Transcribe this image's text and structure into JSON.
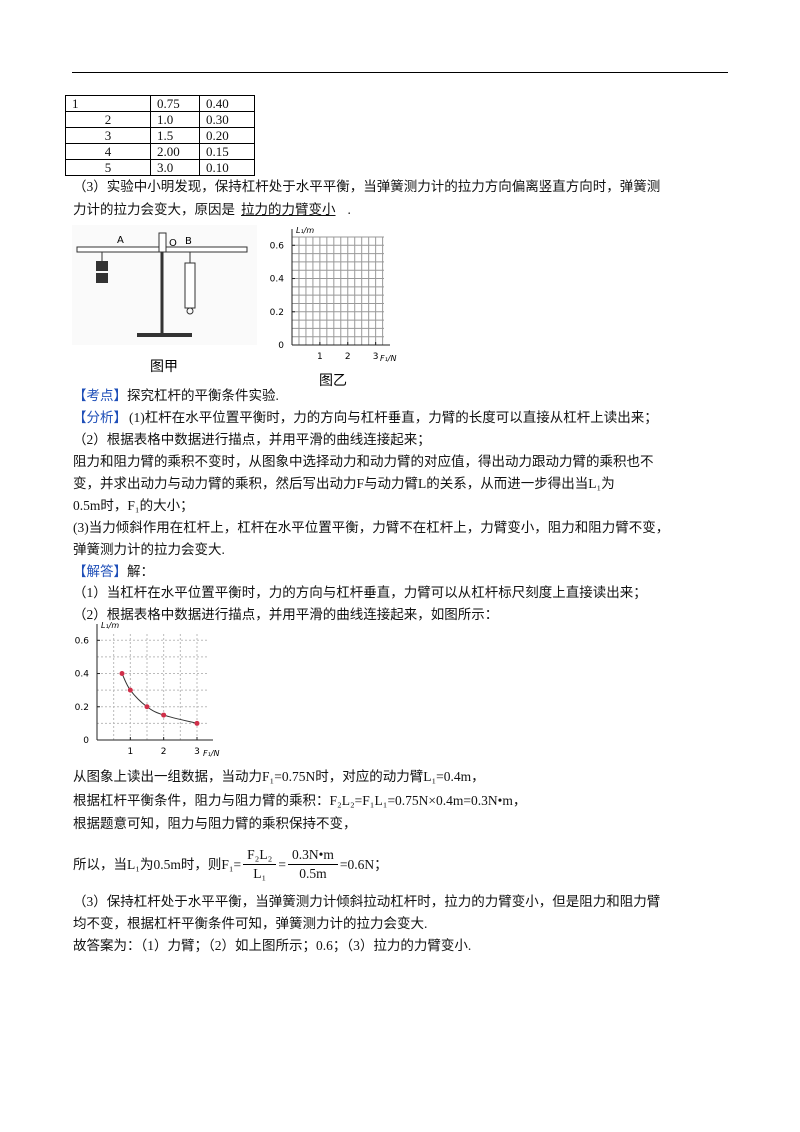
{
  "table": {
    "rows": [
      [
        "1",
        "0.75",
        "0.40"
      ],
      [
        "2",
        "1.0",
        "0.30"
      ],
      [
        "3",
        "1.5",
        "0.20"
      ],
      [
        "4",
        "2.00",
        "0.15"
      ],
      [
        "5",
        "3.0",
        "0.10"
      ]
    ]
  },
  "question3": {
    "line1": "（3）实验中小明发现，保持杠杆处于水平平衡，当弹簧测力计的拉力方向偏离竖直方向时，弹簧测",
    "line2": "力计的拉力会变大，原因是",
    "answer": "拉力的力臂变小",
    "end": "."
  },
  "figure_a": {
    "labels": [
      "A",
      "O",
      "B"
    ],
    "caption": "图甲"
  },
  "figure_b": {
    "caption": "图乙",
    "y_label": "L₁/m",
    "x_label": "F₁/N",
    "xlim": [
      0,
      3.3
    ],
    "ylim": [
      0,
      0.65
    ],
    "xticks": [
      1,
      2,
      3
    ],
    "yticks": [
      0,
      0.2,
      0.4,
      0.6
    ]
  },
  "kaodian": {
    "tag": "【考点】",
    "text": "探究杠杆的平衡条件实验."
  },
  "fenxi": {
    "tag": "【分析】",
    "lines": [
      "(1)杠杆在水平位置平衡时，力的方向与杠杆垂直，力臂的长度可以直接从杠杆上读出来；",
      "（2）根据表格中数据进行描点，并用平滑的曲线连接起来；",
      "阻力和阻力臂的乘积不变时，从图象中选择动力和动力臂的对应值，得出动力跟动力臂的乘积也不",
      "变，并求出动力与动力臂的乘积，然后写出动力F与动力臂L的关系，从而进一步得出当L₁为",
      "0.5m时，F₁的大小；",
      "(3)当力倾斜作用在杠杆上，杠杆在水平位置平衡，力臂不在杠杆上，力臂变小，阻力和阻力臂不变，",
      "弹簧测力计的拉力会变大."
    ]
  },
  "jieda": {
    "tag": "【解答】",
    "text": "解：",
    "lines": [
      "（1）当杠杆在水平位置平衡时，力的方向与杠杆垂直，力臂可以从杠杆标尺刻度上直接读出来；",
      "（2）根据表格中数据进行描点，并用平滑的曲线连接起来，如图所示："
    ]
  },
  "graph": {
    "y_label": "L₁/m",
    "x_label": "F₁/N",
    "xlim": [
      0,
      3.3
    ],
    "ylim": [
      0,
      0.65
    ],
    "xticks": [
      1,
      2,
      3
    ],
    "yticks": [
      0,
      0.2,
      0.4,
      0.6
    ],
    "x": [
      0.75,
      1.0,
      1.5,
      2.0,
      3.0
    ],
    "y": [
      0.4,
      0.3,
      0.2,
      0.15,
      0.1
    ],
    "color": "#d0304a"
  },
  "derivation": {
    "lines": [
      "从图象上读出一组数据，当动力F₁=0.75N时，对应的动力臂L₁=0.4m，",
      "根据杠杆平衡条件，阻力与阻力臂的乘积：F₂L₂=F₁L₁=0.75N×0.4m=0.3N•m，",
      "根据题意可知，阻力与阻力臂的乘积保持不变，"
    ],
    "prefix": "所以，当L₁为0.5m时，则F₁=",
    "frac1_num": "F₂L₂",
    "frac1_den": "L₁",
    "eq": "=",
    "frac2_num": "0.3N•m",
    "frac2_den": "0.5m",
    "result": "=0.6N；"
  },
  "conclusion": {
    "lines": [
      "（3）保持杠杆处于水平平衡，当弹簧测力计倾斜拉动杠杆时，拉力的力臂变小，但是阻力和阻力臂",
      "均不变，根据杠杆平衡条件可知，弹簧测力计的拉力会变大.",
      "故答案为：（1）力臂；（2）如上图所示；0.6；（3）拉力的力臂变小."
    ]
  }
}
